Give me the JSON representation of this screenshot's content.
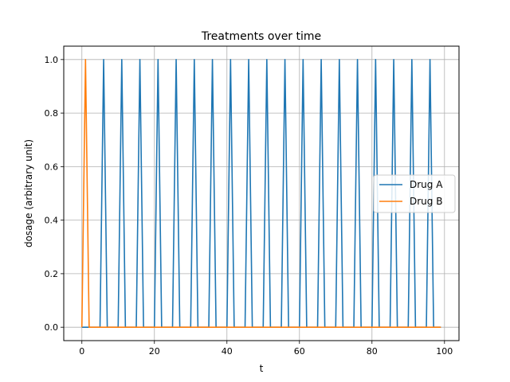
{
  "chart_data": {
    "type": "line",
    "title": "Treatments over time",
    "xlabel": "t",
    "ylabel": "dosage (arbitrary unit)",
    "xlim": [
      -5,
      104
    ],
    "ylim": [
      -0.05,
      1.05
    ],
    "x_ticks": [
      0,
      20,
      40,
      60,
      80,
      100
    ],
    "y_ticks": [
      0.0,
      0.2,
      0.4,
      0.6,
      0.8,
      1.0
    ],
    "x_tick_labels": [
      "0",
      "20",
      "40",
      "60",
      "80",
      "100"
    ],
    "y_tick_labels": [
      "0.0",
      "0.2",
      "0.4",
      "0.6",
      "0.8",
      "1.0"
    ],
    "grid": true,
    "legend_position": "center-right",
    "x_range": [
      0,
      99
    ],
    "series": [
      {
        "name": "Drug A",
        "color": "#1f77b4",
        "spike_times": [
          6,
          11,
          16,
          21,
          26,
          31,
          36,
          41,
          46,
          51,
          56,
          61,
          66,
          71,
          76,
          81,
          86,
          91,
          96
        ],
        "spike_value": 1.0,
        "base_value": 0.0
      },
      {
        "name": "Drug B",
        "color": "#ff7f0e",
        "spike_times": [
          1
        ],
        "spike_value": 1.0,
        "base_value": 0.0
      }
    ]
  }
}
